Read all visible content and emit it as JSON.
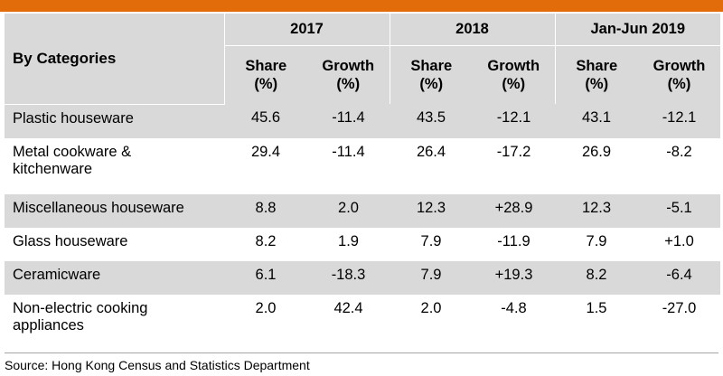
{
  "header": {
    "category_label": "By Categories",
    "periods": [
      "2017",
      "2018",
      "Jan-Jun 2019"
    ],
    "share_label": "Share (%)",
    "growth_label": "Growth (%)"
  },
  "rows": [
    {
      "category": "Plastic houseware",
      "values": [
        "45.6",
        "-11.4",
        "43.5",
        "-12.1",
        "43.1",
        "-12.1"
      ]
    },
    {
      "category": "Metal cookware & kitchenware",
      "values": [
        "29.4",
        "-11.4",
        "26.4",
        "-17.2",
        "26.9",
        "-8.2"
      ]
    },
    {
      "category": "Miscellaneous houseware",
      "values": [
        "8.8",
        "2.0",
        "12.3",
        "+28.9",
        "12.3",
        "-5.1"
      ]
    },
    {
      "category": "Glass houseware",
      "values": [
        "8.2",
        "1.9",
        "7.9",
        "-11.9",
        "7.9",
        "+1.0"
      ]
    },
    {
      "category": "Ceramicware",
      "values": [
        "6.1",
        "-18.3",
        "7.9",
        "+19.3",
        "8.2",
        "-6.4"
      ]
    },
    {
      "category": "Non-electric cooking appliances",
      "values": [
        "2.0",
        "42.4",
        "2.0",
        "-4.8",
        "1.5",
        "-27.0"
      ]
    }
  ],
  "footer": {
    "source": "Source: Hong Kong Census and Statistics Department"
  },
  "colors": {
    "accent_bar": "#e36c0a",
    "header_fill": "#d9d9d9",
    "band_fill": "#d9d9d9"
  }
}
